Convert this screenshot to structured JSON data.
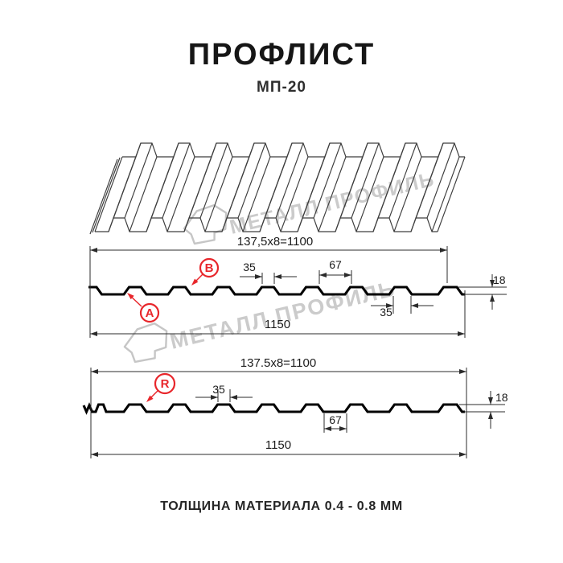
{
  "page": {
    "title": "ПРОФЛИСТ",
    "subtitle": "МП-20",
    "footer_note": "ТОЛЩИНА МАТЕРИАЛА 0.4 - 0.8 ММ"
  },
  "watermark": {
    "brand_text": "МЕТАЛЛ ПРОФИЛЬ",
    "color": "#cbcbcb"
  },
  "colors": {
    "outline_black": "#000000",
    "dimension_gray": "#2b2b2b",
    "iso_gray": "#3d3d3d",
    "accent_red": "#e8262b"
  },
  "front_section": {
    "dim_pitch_total": "137,5x8=1100",
    "dim_crest_width": "35",
    "dim_crest_gap": "67",
    "dim_height": "18",
    "dim_rib_base": "35",
    "dim_overall_width": "1150",
    "marker_a": "A",
    "marker_b": "B"
  },
  "reverse_section": {
    "dim_pitch_total": "137.5x8=1100",
    "dim_crest_width": "35",
    "dim_valley_width": "67",
    "dim_height": "18",
    "dim_overall_width": "1150",
    "marker_r": "R"
  }
}
